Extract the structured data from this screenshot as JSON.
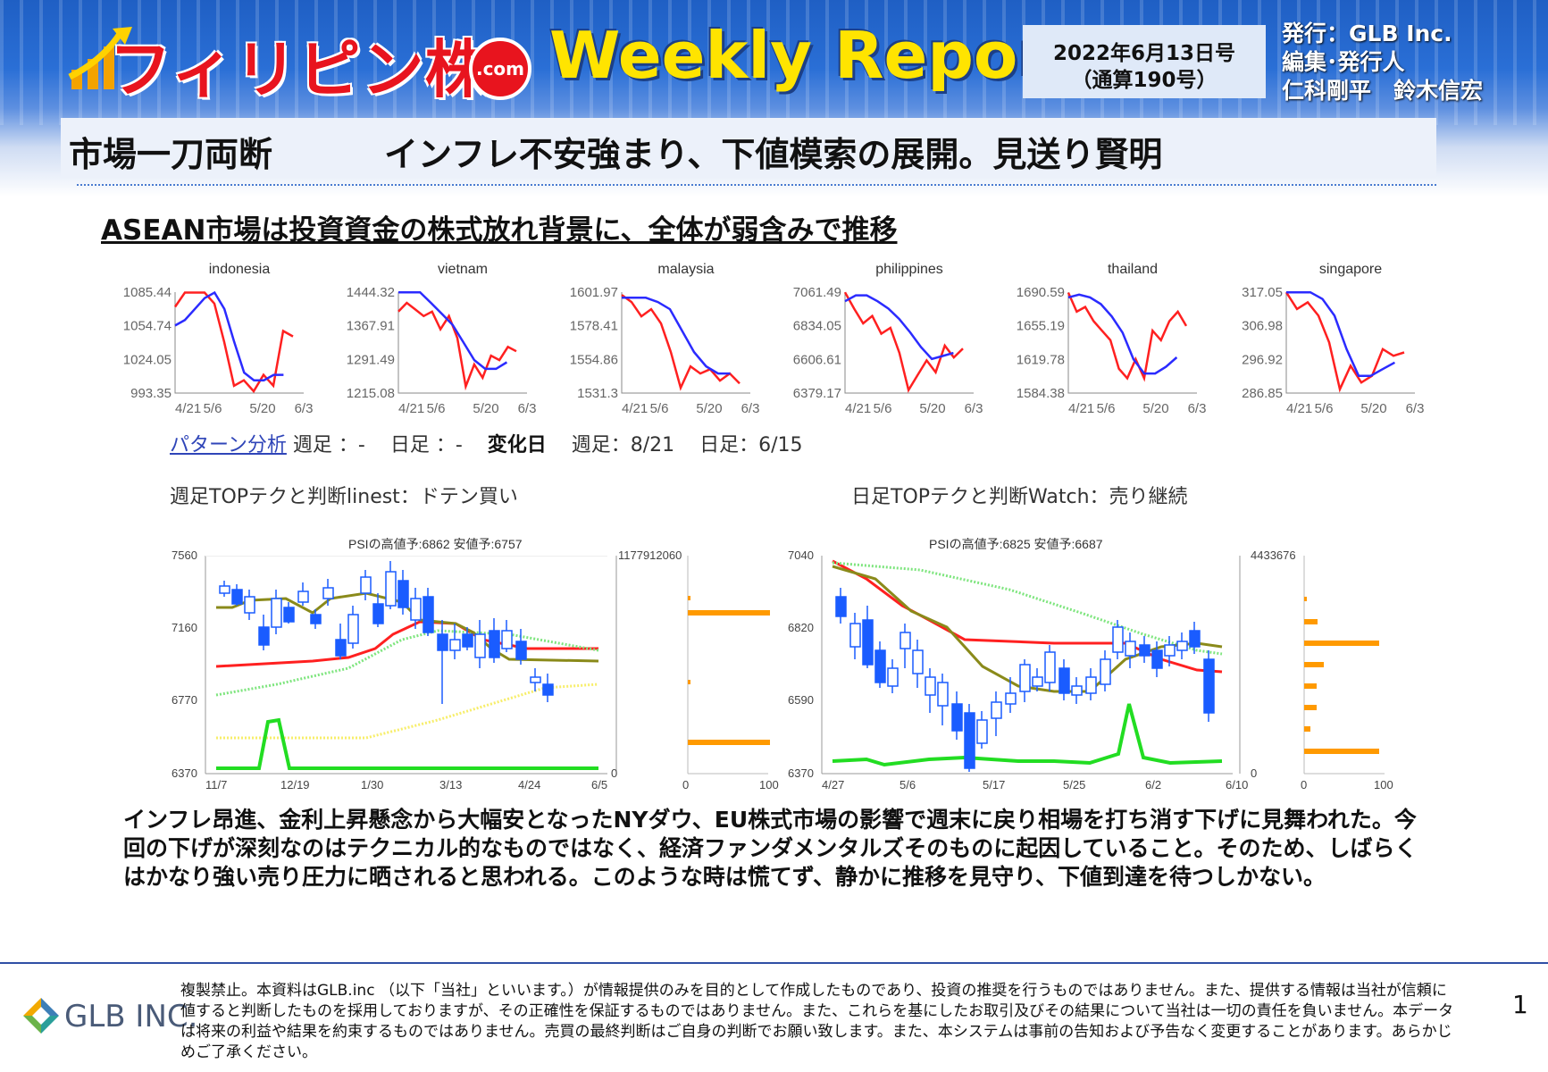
{
  "header": {
    "brand": "フィリピン株",
    "dotcom": ".com",
    "report": "Weekly Report",
    "date_line1": "2022年6月13日号",
    "date_line2": "（通算190号）",
    "publisher": "発行：GLB Inc.",
    "editor_label": "編集･発行人",
    "editors": "仁科剛平　鈴木信宏"
  },
  "headline": {
    "section": "市場一刀両断",
    "title": "インフレ不安強まり、下値模索の展開。見送り賢明"
  },
  "subheading": "ASEAN市場は投資資金の株式放れ背景に、全体が弱含みで推移",
  "chart_data": [
    {
      "type": "line",
      "title": "indonesia",
      "yticks": [
        "1085.44",
        "1054.74",
        "1024.05",
        "993.35"
      ],
      "xticks": [
        "4/21",
        "5/6",
        "5/20",
        "6/3"
      ],
      "ylim": [
        993.35,
        1085.44
      ],
      "series": [
        {
          "values": [
            1072,
            1085,
            1085,
            1085,
            1075,
            1040,
            1000,
            1005,
            995,
            1010,
            1000,
            1050,
            1045
          ]
        },
        {
          "values": [
            1055,
            1060,
            1070,
            1080,
            1085,
            1070,
            1040,
            1012,
            1005,
            1005,
            1010,
            1010
          ]
        }
      ]
    },
    {
      "type": "line",
      "title": "vietnam",
      "yticks": [
        "1444.32",
        "1367.91",
        "1291.49",
        "1215.08"
      ],
      "xticks": [
        "4/21",
        "5/6",
        "5/20",
        "6/3"
      ],
      "ylim": [
        1215.08,
        1444.32
      ],
      "series": [
        {
          "values": [
            1400,
            1420,
            1405,
            1390,
            1400,
            1360,
            1390,
            1340,
            1230,
            1280,
            1250,
            1300,
            1290,
            1320,
            1310
          ]
        },
        {
          "values": [
            1444,
            1444,
            1444,
            1420,
            1395,
            1370,
            1330,
            1290,
            1270,
            1270,
            1285
          ]
        }
      ]
    },
    {
      "type": "line",
      "title": "malaysia",
      "yticks": [
        "1601.97",
        "1578.41",
        "1554.86",
        "1531.3"
      ],
      "xticks": [
        "4/21",
        "5/6",
        "5/20",
        "6/3"
      ],
      "ylim": [
        1531.3,
        1601.97
      ],
      "series": [
        {
          "values": [
            1600,
            1595,
            1585,
            1590,
            1580,
            1560,
            1535,
            1550,
            1545,
            1548,
            1540,
            1545,
            1538
          ]
        },
        {
          "values": [
            1598,
            1598,
            1598,
            1595,
            1590,
            1575,
            1560,
            1550,
            1545,
            1545
          ]
        }
      ]
    },
    {
      "type": "line",
      "title": "philippines",
      "yticks": [
        "7061.49",
        "6834.05",
        "6606.61",
        "6379.17"
      ],
      "xticks": [
        "4/21",
        "5/6",
        "5/20",
        "6/3"
      ],
      "ylim": [
        6379.17,
        7061.49
      ],
      "series": [
        {
          "values": [
            7060,
            6950,
            6850,
            6900,
            6780,
            6820,
            6650,
            6400,
            6500,
            6600,
            6520,
            6700,
            6620,
            6680
          ]
        },
        {
          "values": [
            7000,
            7040,
            7040,
            7000,
            6950,
            6880,
            6790,
            6690,
            6610,
            6630,
            6650
          ]
        }
      ]
    },
    {
      "type": "line",
      "title": "thailand",
      "yticks": [
        "1690.59",
        "1655.19",
        "1619.78",
        "1584.38"
      ],
      "xticks": [
        "4/21",
        "5/6",
        "5/20",
        "6/3"
      ],
      "ylim": [
        1584.38,
        1690.59
      ],
      "series": [
        {
          "values": [
            1690,
            1670,
            1675,
            1660,
            1650,
            1640,
            1610,
            1600,
            1620,
            1600,
            1650,
            1640,
            1660,
            1670,
            1655
          ]
        },
        {
          "values": [
            1685,
            1688,
            1685,
            1678,
            1665,
            1648,
            1620,
            1605,
            1605,
            1612,
            1622
          ]
        }
      ]
    },
    {
      "type": "line",
      "title": "singapore",
      "yticks": [
        "317.05",
        "306.98",
        "296.92",
        "286.85"
      ],
      "xticks": [
        "4/21",
        "5/6",
        "5/20",
        "6/3"
      ],
      "ylim": [
        286.85,
        317.05
      ],
      "series": [
        {
          "values": [
            317,
            312,
            314,
            310,
            302,
            288,
            295,
            290,
            292,
            300,
            298,
            299
          ]
        },
        {
          "values": [
            317,
            317,
            317,
            315,
            310,
            300,
            292,
            292,
            294,
            296
          ]
        }
      ]
    }
  ],
  "pattern": {
    "link": "パターン分析",
    "weekly": "週足 ：-",
    "daily": "日足 ：-",
    "change_label": "変化日",
    "change_weekly": "週足：8/21",
    "change_daily": "日足：6/15"
  },
  "weekly_chart": {
    "title": "週足TOPテクと判断linest：ドテン買い",
    "caption": "PSIの高値予:6862 安値予:6757",
    "yticks": [
      "7560",
      "7160",
      "6770",
      "6370"
    ],
    "xticks": [
      "11/7",
      "12/19",
      "1/30",
      "3/13",
      "4/24",
      "6/5"
    ],
    "right_label": "1177912060",
    "right_axis": [
      "0",
      "100"
    ],
    "right_zero": "0"
  },
  "daily_chart": {
    "title": "日足TOPテクと判断Watch：売り継続",
    "caption": "PSIの高値予:6825 安値予:6687",
    "yticks": [
      "7040",
      "6820",
      "6590",
      "6370"
    ],
    "xticks": [
      "4/27",
      "5/6",
      "5/17",
      "5/25",
      "6/2",
      "6/10"
    ],
    "right_label": "4433676",
    "right_axis": [
      "0",
      "100"
    ],
    "right_zero": "0"
  },
  "body": "インフレ昂進、金利上昇懸念から大幅安となったNYダウ、EU株式市場の影響で週末に戻り相場を打ち消す下げに見舞われた。今回の下げが深刻なのはテクニカル的なものではなく、経済ファンダメンタルズそのものに起因していること。そのため、しばらくはかなり強い売り圧力に晒されると思われる。このような時は慌てず、静かに推移を見守り、下値到達を待つしかない。",
  "footer": {
    "logo_text": "GLB INC.",
    "disclaimer": "複製禁止。本資料はGLB.inc （以下「当社」といいます。）が情報提供のみを目的として作成したものであり、投資の推奨を行うものではありません。また、提供する情報は当社が信頼に値すると判断したものを採用しておりますが、その正確性を保証するものではありません。また、これらを基にしたお取引及びその結果について当社は一切の責任を負いません。本データは将来の利益や結果を約束するものではありません。売買の最終判断はご自身の判断でお願い致します。また、本システムは事前の告知および予告なく変更することがあります。あらかじめご了承ください。",
    "page": "1"
  },
  "colors": {
    "red": "#ff2020",
    "blue": "#2b2bff",
    "orange": "#ff9a00",
    "green": "#22dd22",
    "olive": "#8a8a1a",
    "candle": "#1a5cff"
  }
}
